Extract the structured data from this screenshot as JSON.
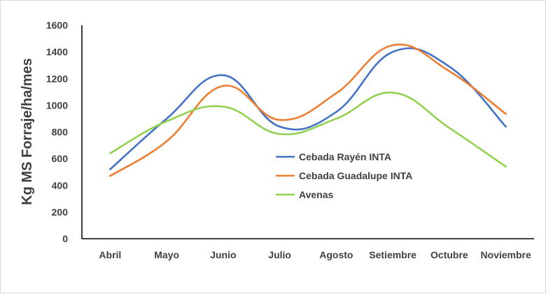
{
  "chart_data": {
    "type": "line",
    "categories": [
      "Abril",
      "Mayo",
      "Junio",
      "Julio",
      "Agosto",
      "Setiembre",
      "Octubre",
      "Noviembre"
    ],
    "series": [
      {
        "name": "Cebada Rayén INTA",
        "values": [
          520,
          900,
          1225,
          840,
          950,
          1400,
          1290,
          840
        ],
        "color": "#4472c4"
      },
      {
        "name": "Cebada Guadalupe INTA",
        "values": [
          470,
          730,
          1145,
          890,
          1090,
          1450,
          1255,
          935
        ],
        "color": "#ed7d31"
      },
      {
        "name": "Avenas",
        "values": [
          640,
          880,
          990,
          785,
          900,
          1095,
          830,
          540
        ],
        "color": "#92d050"
      }
    ],
    "ylabel": "Kg MS Forraje/ha/mes",
    "xlabel": "",
    "ylim": [
      0,
      1600
    ],
    "yticks": [
      0,
      200,
      400,
      600,
      800,
      1000,
      1200,
      1400,
      1600
    ],
    "grid": false,
    "legend_position": "center-right",
    "smooth": true
  }
}
